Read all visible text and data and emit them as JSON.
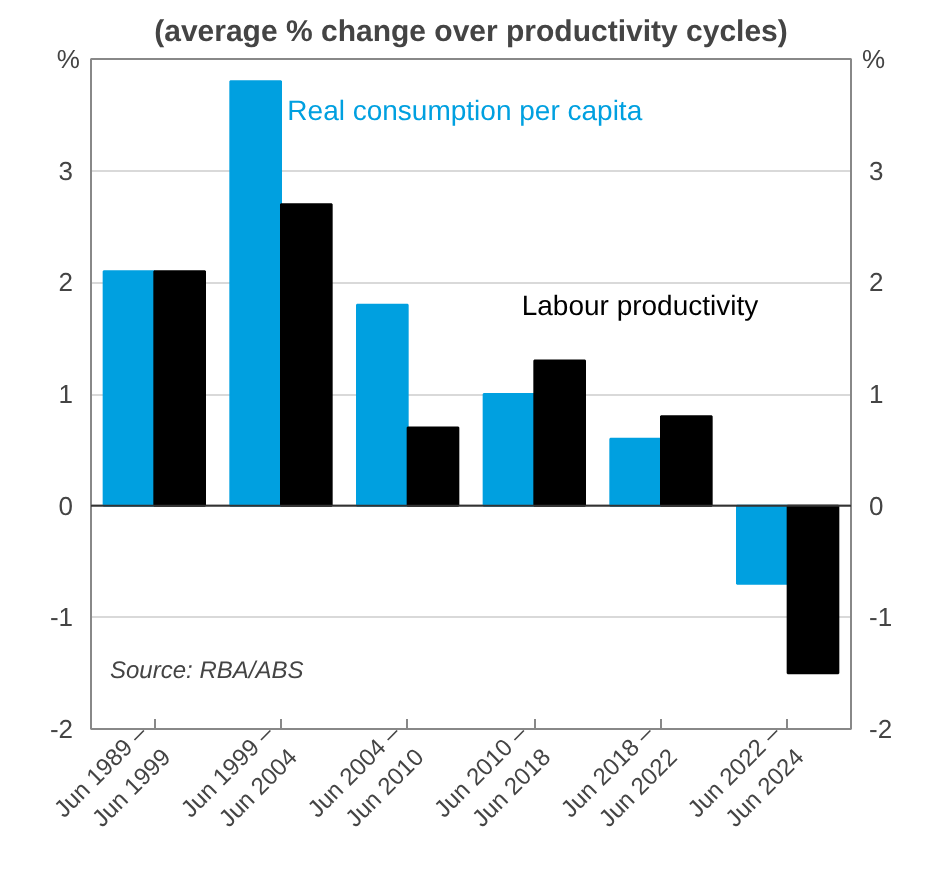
{
  "chart_data": {
    "type": "bar",
    "subtitle": "(average % change over productivity cycles)",
    "ylabel": "%",
    "y2label": "%",
    "categories": [
      "Jun 1989 –\nJun 1999",
      "Jun 1999 –\nJun 2004",
      "Jun 2004 –\nJun 2010",
      "Jun 2010 –\nJun 2018",
      "Jun 2018 –\nJun 2022",
      "Jun 2022 –\nJun 2024"
    ],
    "series": [
      {
        "name": "Real consumption per capita",
        "color": "#00a0e0",
        "values": [
          2.1,
          3.8,
          1.8,
          1.0,
          0.6,
          -0.7
        ]
      },
      {
        "name": "Labour productivity",
        "color": "#000000",
        "values": [
          2.1,
          2.7,
          0.7,
          1.3,
          0.8,
          -1.5
        ]
      }
    ],
    "ylim": [
      -2,
      4
    ],
    "yticks": [
      -2,
      -1,
      0,
      1,
      2,
      3
    ],
    "y2lim": [
      -2,
      4
    ],
    "y2ticks": [
      -2,
      -1,
      0,
      1,
      2,
      3
    ],
    "grid": "y",
    "legend": false,
    "annotations": [
      "Source: RBA/ABS"
    ]
  }
}
